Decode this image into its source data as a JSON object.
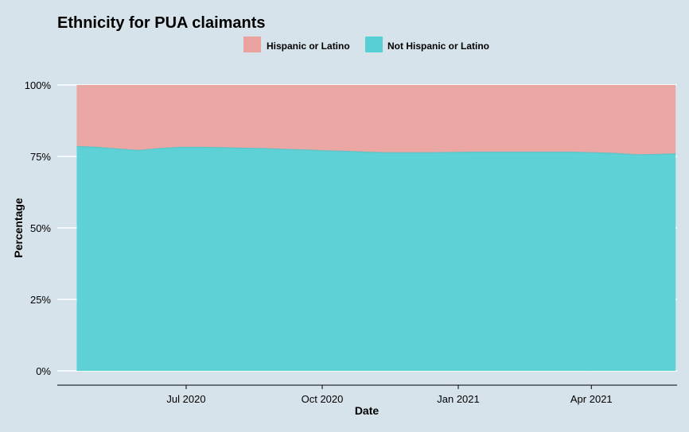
{
  "chart_data": {
    "type": "area",
    "stacked": "percent",
    "title": "Ethnicity for PUA claimants",
    "xlabel": "Date",
    "ylabel": "Percentage",
    "ylim": [
      0,
      100
    ],
    "xlim": [
      "2020-04-18",
      "2021-05-28"
    ],
    "y_ticks": [
      0,
      25,
      50,
      75,
      100
    ],
    "y_tick_labels": [
      "0%",
      "25%",
      "50%",
      "75%",
      "100%"
    ],
    "x_ticks": [
      "2020-07-01",
      "2020-10-01",
      "2021-01-01",
      "2021-04-01"
    ],
    "x_tick_labels": [
      "Jul 2020",
      "Oct 2020",
      "Jan 2021",
      "Apr 2021"
    ],
    "legend": {
      "position": "top",
      "items": [
        {
          "label": "Hispanic or Latino",
          "color": "#eba3a0"
        },
        {
          "label": "Not Hispanic or Latino",
          "color": "#56d0d5"
        }
      ]
    },
    "grid": true,
    "colors": {
      "background": "#d6e3ea",
      "grid": "#ffffff",
      "hispanic": "#eba3a0",
      "not_hispanic": "#56d0d5",
      "axis": "#000000"
    },
    "dates": [
      "2020-04-18",
      "2020-05-02",
      "2020-05-16",
      "2020-05-30",
      "2020-06-13",
      "2020-06-27",
      "2020-07-11",
      "2020-07-25",
      "2020-08-08",
      "2020-08-22",
      "2020-09-05",
      "2020-09-19",
      "2020-10-03",
      "2020-10-17",
      "2020-10-31",
      "2020-11-14",
      "2020-11-28",
      "2020-12-12",
      "2020-12-26",
      "2021-01-09",
      "2021-01-23",
      "2021-02-06",
      "2021-02-20",
      "2021-03-06",
      "2021-03-20",
      "2021-04-03",
      "2021-04-17",
      "2021-05-01",
      "2021-05-15",
      "2021-05-28"
    ],
    "series": [
      {
        "name": "Not Hispanic or Latino",
        "values": [
          78.5,
          78.2,
          77.6,
          77.1,
          77.8,
          78.2,
          78.2,
          78.1,
          77.9,
          77.8,
          77.5,
          77.3,
          77.0,
          76.8,
          76.5,
          76.3,
          76.3,
          76.3,
          76.4,
          76.5,
          76.5,
          76.5,
          76.5,
          76.5,
          76.5,
          76.3,
          76.1,
          75.6,
          75.7,
          75.9
        ]
      },
      {
        "name": "Hispanic or Latino",
        "values": [
          21.5,
          21.8,
          22.4,
          22.9,
          22.2,
          21.8,
          21.8,
          21.9,
          22.1,
          22.2,
          22.5,
          22.7,
          23.0,
          23.2,
          23.5,
          23.7,
          23.7,
          23.7,
          23.6,
          23.5,
          23.5,
          23.5,
          23.5,
          23.5,
          23.5,
          23.7,
          23.9,
          24.4,
          24.3,
          24.1
        ]
      }
    ]
  }
}
